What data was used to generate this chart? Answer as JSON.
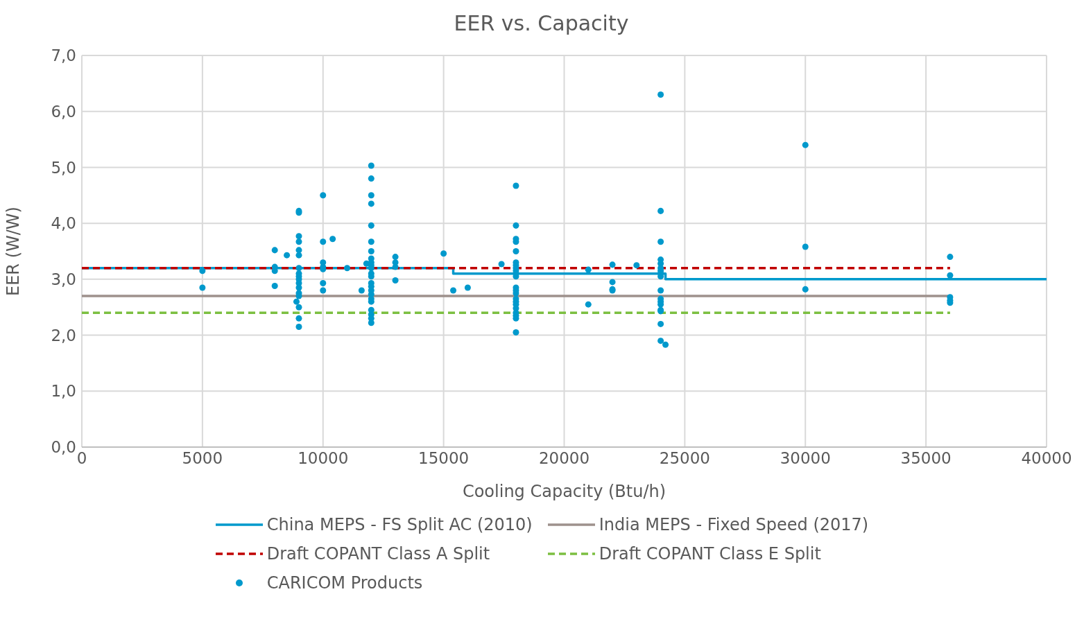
{
  "chart_data": {
    "type": "scatter",
    "title": "EER vs. Capacity",
    "xlabel": "Cooling Capacity (Btu/h)",
    "ylabel": "EER (W/W)",
    "xlim": [
      0,
      40000
    ],
    "xticks": [
      0,
      5000,
      10000,
      15000,
      20000,
      25000,
      30000,
      35000,
      40000
    ],
    "ylim": [
      0,
      7
    ],
    "yticks": [
      {
        "value": 0,
        "label": "0,0"
      },
      {
        "value": 1,
        "label": "1,0"
      },
      {
        "value": 2,
        "label": "2,0"
      },
      {
        "value": 3,
        "label": "3,0"
      },
      {
        "value": 4,
        "label": "4,0"
      },
      {
        "value": 5,
        "label": "5,0"
      },
      {
        "value": 6,
        "label": "6,0"
      },
      {
        "value": 7,
        "label": "7,0"
      }
    ],
    "grid": true,
    "legend": "bottom",
    "series": [
      {
        "name": "China MEPS - FS Split AC (2010)",
        "type": "step",
        "color": "#0099cc",
        "line_style": "solid",
        "x": [
          0,
          15400,
          24200,
          40000
        ],
        "values": [
          3.2,
          3.1,
          3.0,
          3.0
        ]
      },
      {
        "name": "India MEPS - Fixed Speed (2017)",
        "type": "line",
        "color": "#9e918c",
        "line_style": "solid",
        "x": [
          0,
          36000
        ],
        "values": [
          2.7,
          2.7
        ]
      },
      {
        "name": "Draft COPANT Class A Split",
        "type": "line",
        "color": "#c00000",
        "line_style": "dashed",
        "x": [
          0,
          36000
        ],
        "values": [
          3.2,
          3.2
        ]
      },
      {
        "name": "Draft COPANT Class E Split",
        "type": "line",
        "color": "#7cbf41",
        "line_style": "dashed",
        "x": [
          0,
          36000
        ],
        "values": [
          2.4,
          2.4
        ]
      },
      {
        "name": "CARICOM Products",
        "color": "#0099cc",
        "marker": "circle",
        "x": [
          5000,
          5000,
          8000,
          8000,
          8000,
          8000,
          8500,
          8900,
          9000,
          9000,
          9000,
          9000,
          9000,
          9000,
          9000,
          9000,
          9000,
          9000,
          9000,
          9000,
          9000,
          9000,
          9000,
          9000,
          9000,
          10000,
          10000,
          10000,
          10000,
          10000,
          10000,
          10000,
          10400,
          11000,
          11600,
          11800,
          12000,
          12000,
          12000,
          12000,
          12000,
          12000,
          12000,
          12000,
          12000,
          12000,
          12000,
          12000,
          12000,
          12000,
          12000,
          12000,
          12000,
          12000,
          12000,
          12000,
          12000,
          12000,
          12000,
          13000,
          13000,
          13000,
          13000,
          15000,
          15400,
          16000,
          17400,
          18000,
          18000,
          18000,
          18000,
          18000,
          18000,
          18000,
          18000,
          18000,
          18000,
          18000,
          18000,
          18000,
          18000,
          18000,
          18000,
          18000,
          18000,
          18000,
          18000,
          18000,
          18000,
          21000,
          21000,
          22000,
          22000,
          22000,
          22000,
          23000,
          24000,
          24000,
          24000,
          24000,
          24000,
          24000,
          24000,
          24000,
          24000,
          24000,
          24000,
          24000,
          24000,
          24000,
          24000,
          24000,
          24000,
          24200,
          30000,
          30000,
          30000,
          36000,
          36000,
          36000,
          36000,
          36000
        ],
        "values": [
          3.15,
          2.85,
          3.52,
          3.22,
          3.15,
          2.88,
          3.43,
          2.6,
          4.22,
          4.19,
          3.77,
          3.67,
          3.52,
          3.43,
          3.2,
          3.1,
          3.05,
          3.0,
          2.93,
          2.85,
          2.75,
          2.7,
          2.5,
          2.3,
          2.15,
          4.5,
          3.67,
          3.3,
          3.22,
          3.18,
          2.93,
          2.8,
          3.72,
          3.2,
          2.8,
          3.28,
          5.03,
          4.8,
          4.5,
          4.35,
          3.96,
          3.67,
          3.5,
          3.37,
          3.3,
          3.25,
          3.2,
          3.1,
          3.05,
          2.93,
          2.87,
          2.8,
          2.73,
          2.65,
          2.6,
          2.45,
          2.37,
          2.3,
          2.22,
          3.4,
          3.3,
          3.22,
          2.98,
          3.46,
          2.8,
          2.85,
          3.27,
          4.67,
          3.96,
          3.72,
          3.67,
          3.5,
          3.3,
          3.25,
          3.2,
          3.15,
          3.1,
          3.05,
          2.85,
          2.8,
          2.75,
          2.65,
          2.6,
          2.55,
          2.48,
          2.4,
          2.35,
          2.3,
          2.05,
          3.17,
          2.55,
          3.26,
          2.95,
          2.82,
          2.8,
          3.25,
          6.3,
          4.22,
          3.67,
          3.35,
          3.28,
          3.2,
          3.15,
          3.1,
          3.05,
          2.8,
          2.65,
          2.6,
          2.55,
          2.45,
          2.43,
          2.2,
          1.9,
          1.83,
          5.4,
          3.58,
          2.82,
          3.4,
          3.07,
          2.68,
          2.62,
          2.58
        ]
      }
    ]
  }
}
